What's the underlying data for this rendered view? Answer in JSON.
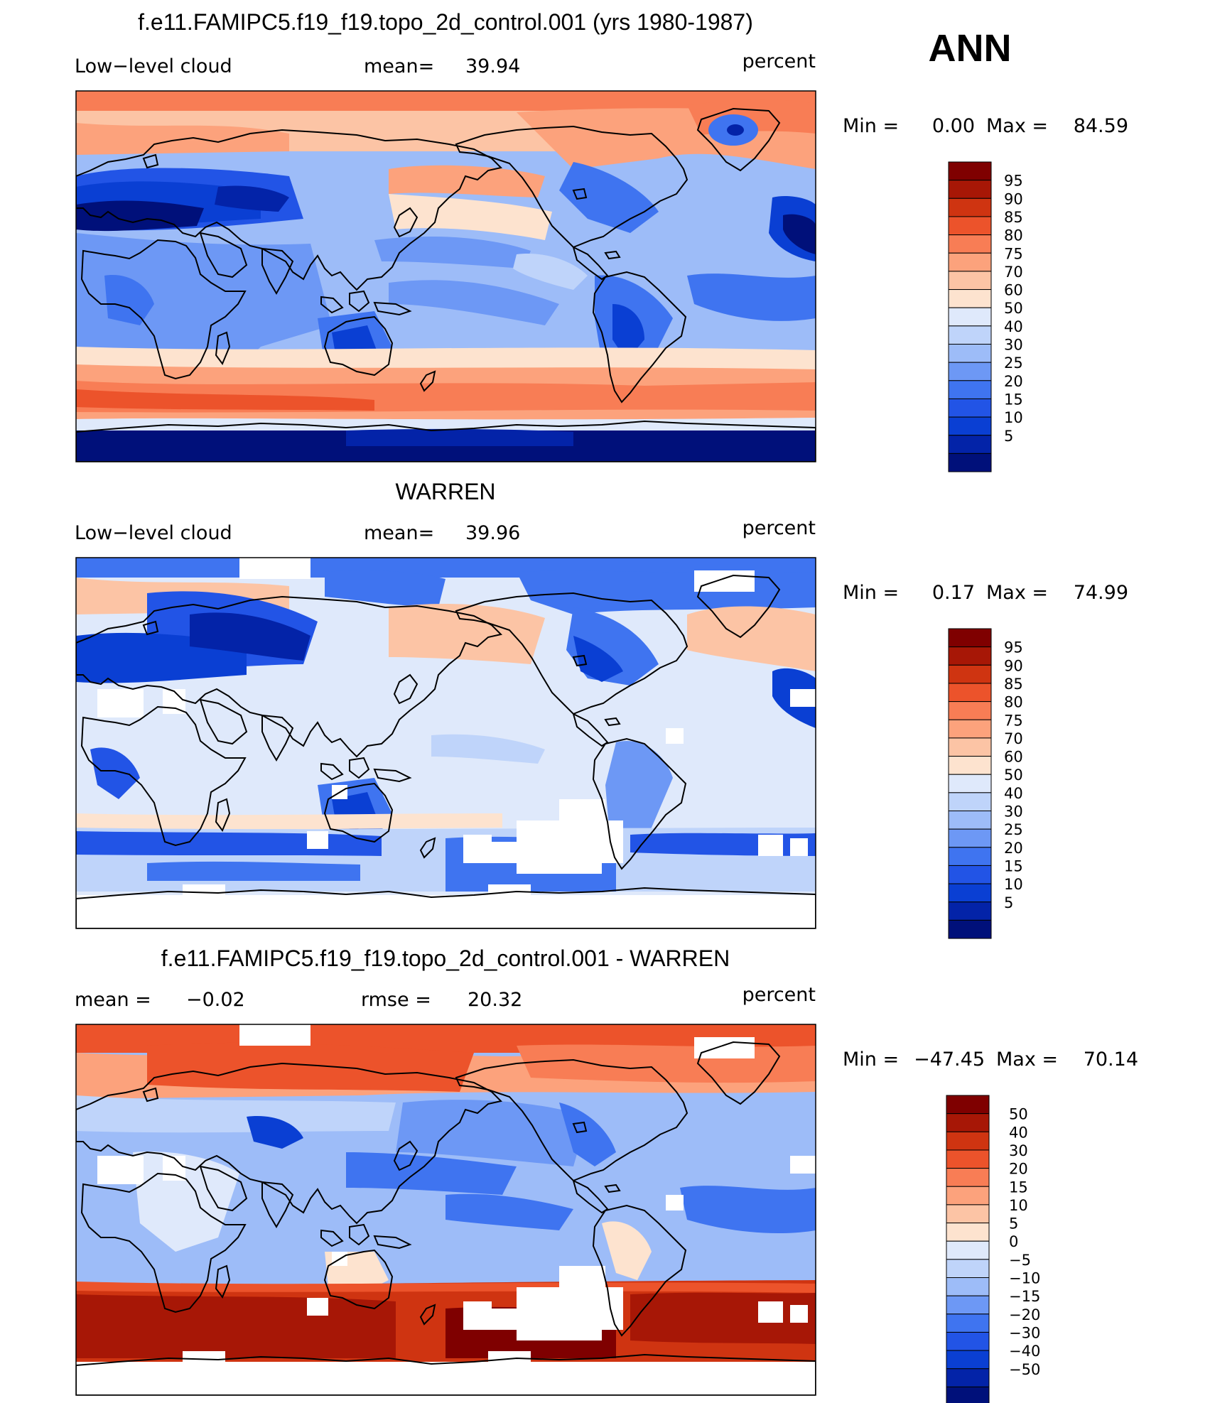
{
  "season": "ANN",
  "colors": {
    "level_palette": [
      "#00107a",
      "#0323a8",
      "#0a3fd3",
      "#2254e6",
      "#3f74f0",
      "#6d98f5",
      "#9dbcf8",
      "#bfd4fa",
      "#dfe9fb",
      "#fde3cf",
      "#fcc4a5",
      "#fca27c",
      "#f87d55",
      "#ec532b",
      "#cf3411",
      "#a71706",
      "#7f0000"
    ],
    "land_outline": "#000000",
    "frame": "#000000"
  },
  "panels": [
    {
      "id": "model",
      "title": "f.e11.FAMIPC5.f19_f19.topo_2d_control.001 (yrs 1980-1987)",
      "left_label": "Low−level cloud",
      "stat_label": "mean=",
      "stat_value": "39.94",
      "units": "percent",
      "min_label": "Min =",
      "min_value": "0.00",
      "max_label": "Max =",
      "max_value": "84.59",
      "colorbar_labels": [
        "95",
        "90",
        "85",
        "80",
        "75",
        "70",
        "60",
        "50",
        "40",
        "30",
        "25",
        "20",
        "15",
        "10",
        "5"
      ]
    },
    {
      "id": "obs",
      "title": "WARREN",
      "left_label": "Low−level cloud",
      "stat_label": "mean=",
      "stat_value": "39.96",
      "units": "percent",
      "min_label": "Min =",
      "min_value": "0.17",
      "max_label": "Max =",
      "max_value": "74.99",
      "colorbar_labels": [
        "95",
        "90",
        "85",
        "80",
        "75",
        "70",
        "60",
        "50",
        "40",
        "30",
        "25",
        "20",
        "15",
        "10",
        "5"
      ]
    },
    {
      "id": "diff",
      "title": "f.e11.FAMIPC5.f19_f19.topo_2d_control.001 - WARREN",
      "left_label": "mean =",
      "left_value": "−0.02",
      "stat_label": "rmse =",
      "stat_value": "20.32",
      "units": "percent",
      "min_label": "Min =",
      "min_value": "−47.45",
      "max_label": "Max =",
      "max_value": "70.14",
      "colorbar_labels": [
        "50",
        "40",
        "30",
        "20",
        "15",
        "10",
        "5",
        "0",
        "−5",
        "−10",
        "−15",
        "−20",
        "−30",
        "−40",
        "−50"
      ]
    }
  ]
}
